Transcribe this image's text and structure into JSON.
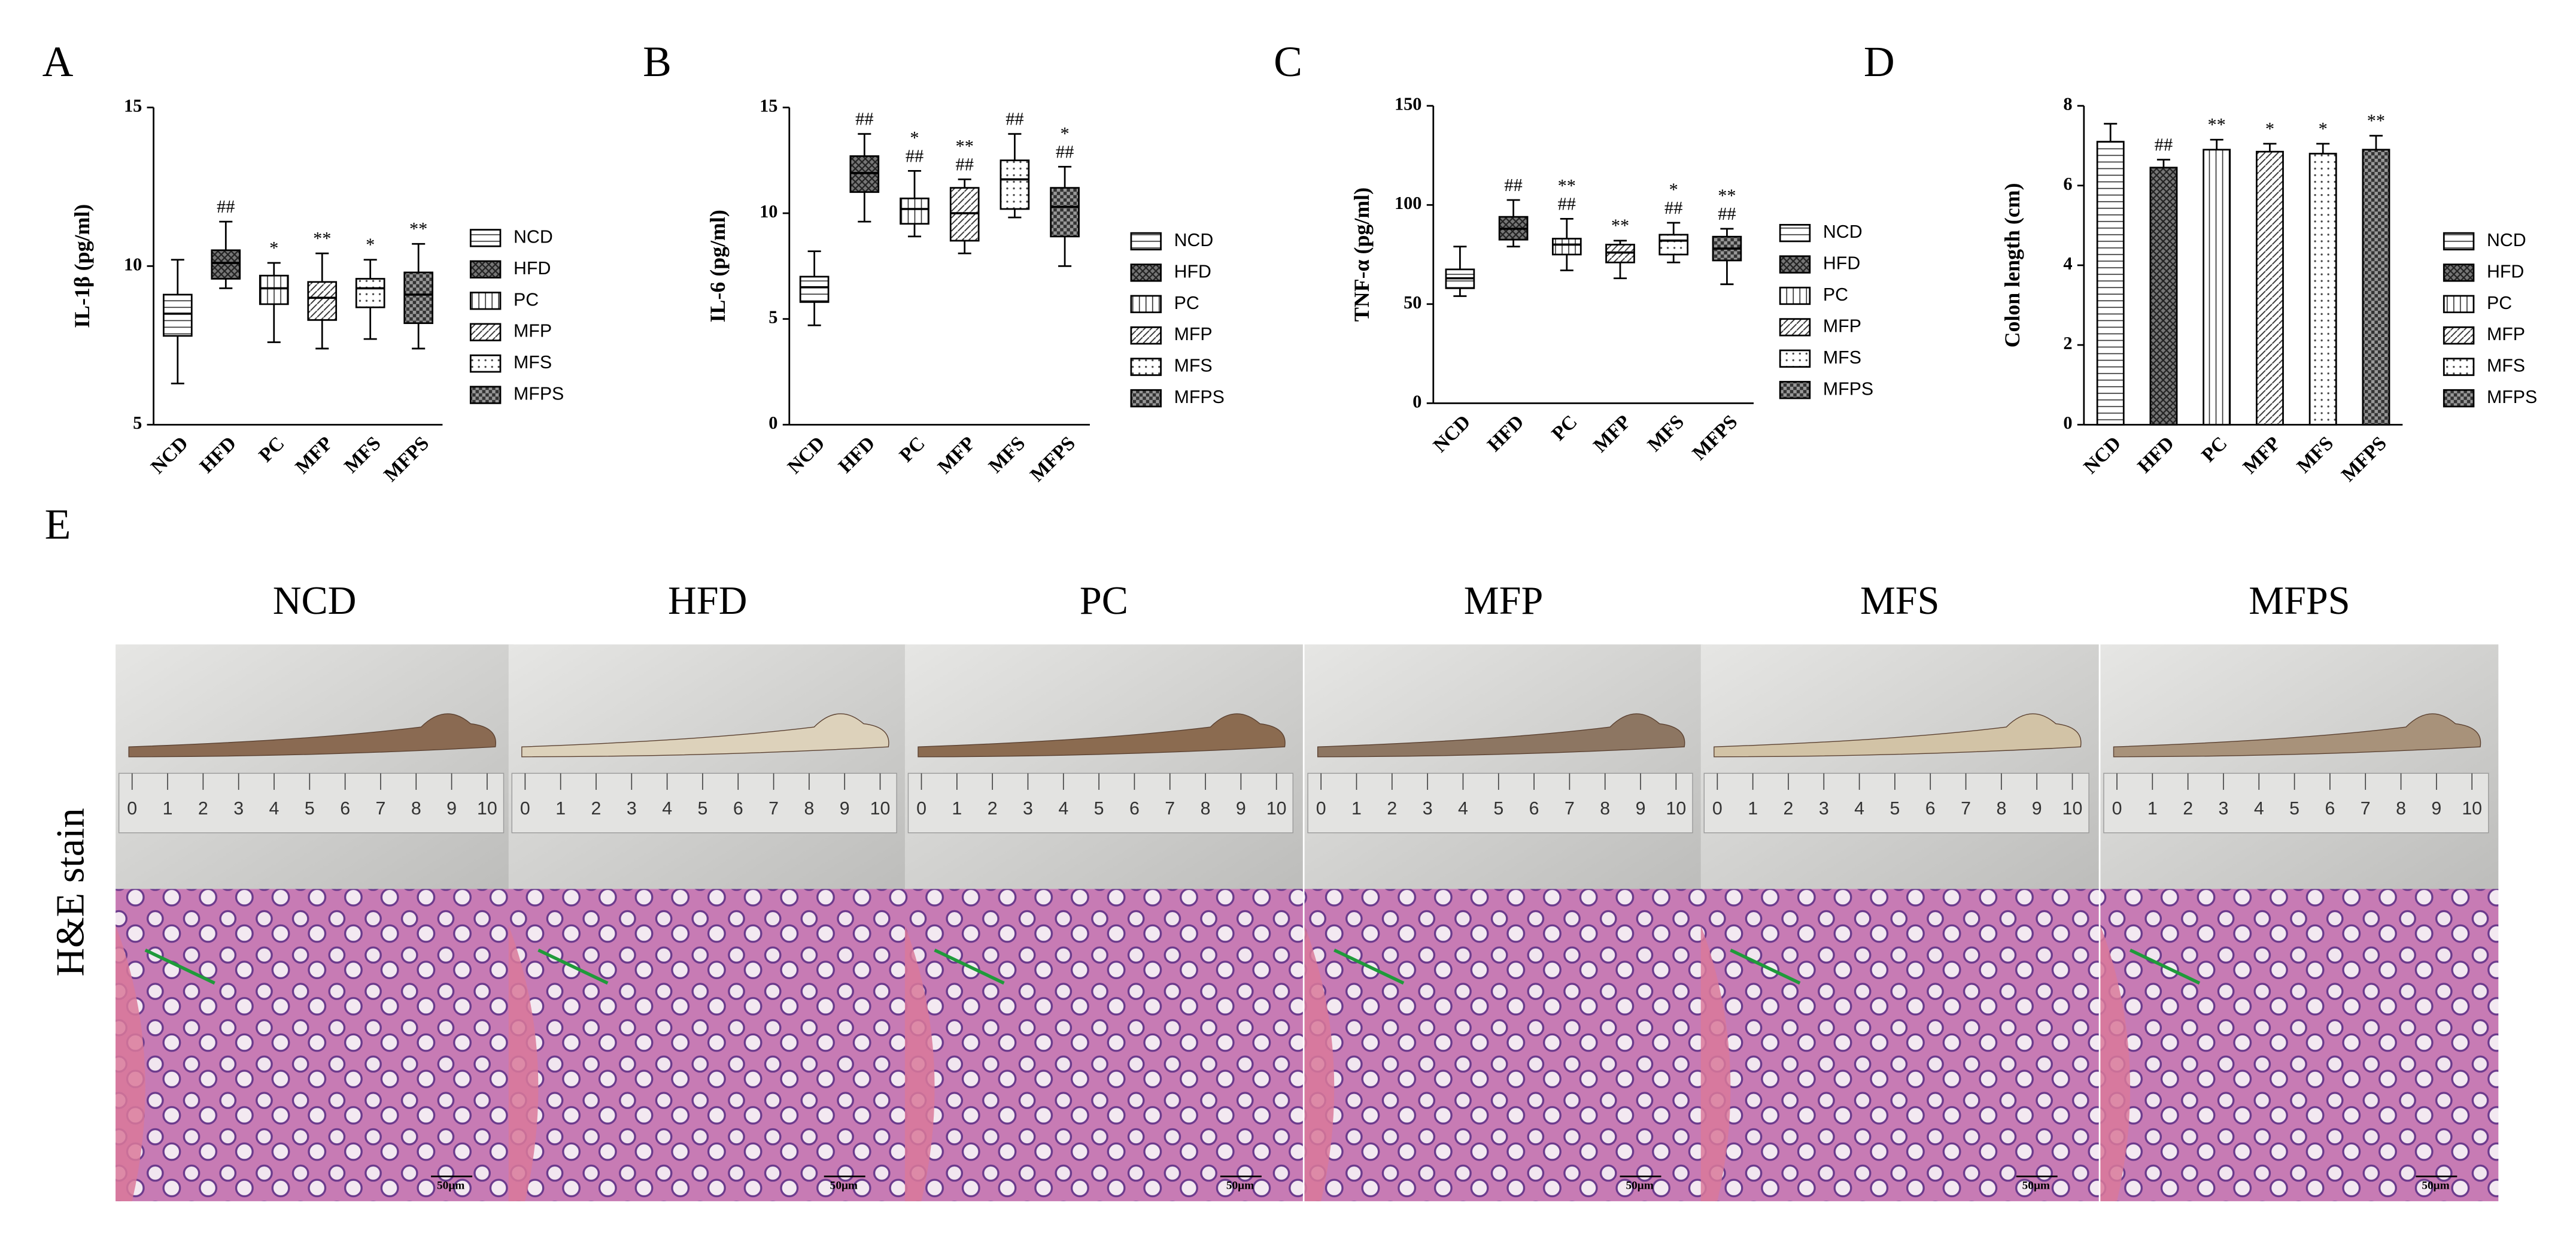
{
  "chart_data": [
    {
      "type": "box",
      "panel_label": "A",
      "y_label": "IL-1β (pg/ml)",
      "categories": [
        "NCD",
        "HFD",
        "PC",
        "MFP",
        "MFS",
        "MFPS"
      ],
      "min": [
        6.3,
        9.3,
        7.6,
        7.4,
        7.7,
        7.4
      ],
      "q1": [
        7.8,
        9.6,
        8.8,
        8.3,
        8.7,
        8.2
      ],
      "median": [
        8.5,
        10.1,
        9.3,
        9.0,
        9.3,
        9.1
      ],
      "q3": [
        9.1,
        10.5,
        9.7,
        9.5,
        9.6,
        9.8
      ],
      "max": [
        10.2,
        11.4,
        10.1,
        10.4,
        10.2,
        10.7
      ],
      "annotations": [
        [],
        [
          "##"
        ],
        [
          "*"
        ],
        [
          "**"
        ],
        [
          "*"
        ],
        [
          "**"
        ]
      ],
      "ylim": [
        5,
        15
      ],
      "yticks": [
        5,
        10,
        15
      ]
    },
    {
      "type": "box",
      "panel_label": "B",
      "y_label": "IL-6 (pg/ml)",
      "categories": [
        "NCD",
        "HFD",
        "PC",
        "MFP",
        "MFS",
        "MFPS"
      ],
      "min": [
        4.7,
        9.6,
        8.9,
        8.1,
        9.8,
        7.5
      ],
      "q1": [
        5.8,
        11.0,
        9.5,
        8.7,
        10.2,
        8.9
      ],
      "median": [
        6.5,
        11.9,
        10.2,
        10.0,
        11.6,
        10.3
      ],
      "q3": [
        7.0,
        12.7,
        10.7,
        11.2,
        12.5,
        11.2
      ],
      "max": [
        8.2,
        13.75,
        12.0,
        11.6,
        13.75,
        12.2
      ],
      "annotations": [
        [],
        [
          "##"
        ],
        [
          "*",
          "##"
        ],
        [
          "**",
          "##"
        ],
        [
          "##"
        ],
        [
          "*",
          "##"
        ]
      ],
      "ylim": [
        0,
        15
      ],
      "yticks": [
        0,
        5,
        10,
        15
      ]
    },
    {
      "type": "box",
      "panel_label": "C",
      "y_label": "TNF-α (pg/ml)",
      "categories": [
        "NCD",
        "HFD",
        "PC",
        "MFP",
        "MFS",
        "MFPS"
      ],
      "min": [
        54,
        79,
        67,
        63,
        71,
        60
      ],
      "q1": [
        58,
        82.5,
        75,
        71,
        75,
        72
      ],
      "median": [
        63,
        88,
        80,
        76,
        82,
        78
      ],
      "q3": [
        67.5,
        94,
        83,
        80,
        85,
        84
      ],
      "max": [
        79,
        102.5,
        93,
        82,
        91,
        88
      ],
      "annotations": [
        [],
        [
          "##"
        ],
        [
          "**",
          "##"
        ],
        [
          "**"
        ],
        [
          "*",
          "##"
        ],
        [
          "**",
          "##"
        ]
      ],
      "ylim": [
        0,
        150
      ],
      "yticks": [
        0,
        50,
        100,
        150
      ]
    },
    {
      "type": "bar",
      "panel_label": "D",
      "y_label": "Colon length (cm)",
      "categories": [
        "NCD",
        "HFD",
        "PC",
        "MFP",
        "MFS",
        "MFPS"
      ],
      "values": [
        7.1,
        6.45,
        6.9,
        6.85,
        6.8,
        6.9
      ],
      "errors": [
        0.45,
        0.2,
        0.25,
        0.2,
        0.25,
        0.35
      ],
      "annotations": [
        [],
        [
          "##"
        ],
        [
          "**"
        ],
        [
          "*"
        ],
        [
          "*"
        ],
        [
          "**"
        ]
      ],
      "ylim": [
        0,
        8
      ],
      "yticks": [
        0,
        2,
        4,
        6,
        8
      ]
    }
  ],
  "panel_e": {
    "panel_label": "E",
    "groups": [
      "NCD",
      "HFD",
      "PC",
      "MFP",
      "MFS",
      "MFPS"
    ],
    "stain_label": "H&E stain",
    "scale_bar": "50μm",
    "ruler_ticks": [
      0,
      1,
      2,
      3,
      4,
      5,
      6,
      7,
      8,
      9,
      10
    ]
  }
}
